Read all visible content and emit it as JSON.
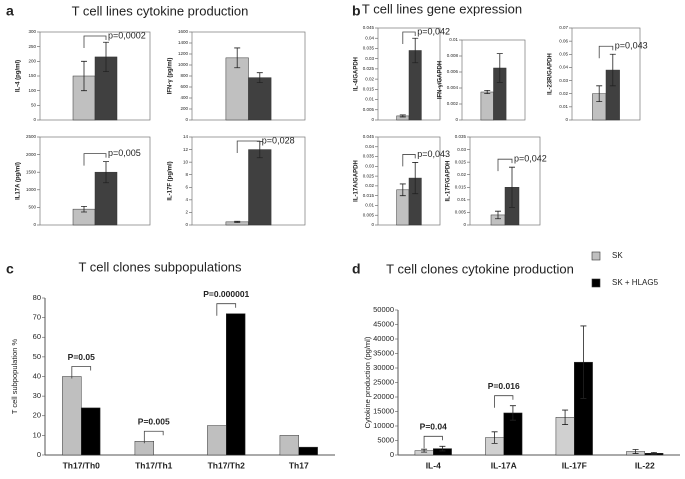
{
  "chart_data": [
    {
      "type": "bar",
      "panel_label": "a",
      "panel_title": "T cell lines cytokine production",
      "ylabel": "IL-4 (pg/ml)",
      "frame": true,
      "series": [
        {
          "color": "#c0c0c0",
          "values": [
            150
          ],
          "errors": [
            50
          ]
        },
        {
          "color": "#404040",
          "values": [
            215
          ],
          "errors": [
            50
          ]
        }
      ],
      "ylim": [
        0,
        300
      ],
      "yticks": [
        0,
        50,
        100,
        150,
        200,
        250,
        300
      ],
      "annotations": [
        {
          "text": "p=0,0002"
        }
      ]
    },
    {
      "type": "bar",
      "ylabel": "IFN-γ (pg/ml)",
      "frame": true,
      "series": [
        {
          "color": "#c0c0c0",
          "values": [
            1130
          ],
          "errors": [
            180
          ]
        },
        {
          "color": "#404040",
          "values": [
            770
          ],
          "errors": [
            90
          ]
        }
      ],
      "ylim": [
        0,
        1600
      ],
      "yticks": [
        0,
        200,
        400,
        600,
        800,
        1000,
        1200,
        1400,
        1600
      ],
      "annotations": []
    },
    {
      "type": "bar",
      "ylabel": "IL17A (pg/ml)",
      "frame": true,
      "series": [
        {
          "color": "#c0c0c0",
          "values": [
            450
          ],
          "errors": [
            80
          ]
        },
        {
          "color": "#404040",
          "values": [
            1500
          ],
          "errors": [
            300
          ]
        }
      ],
      "ylim": [
        0,
        2500
      ],
      "yticks": [
        0,
        500,
        1000,
        1500,
        2000,
        2500
      ],
      "annotations": [
        {
          "text": "p=0,005"
        }
      ]
    },
    {
      "type": "bar",
      "ylabel": "IL-17F (pg/ml)",
      "frame": true,
      "series": [
        {
          "color": "#c0c0c0",
          "values": [
            0.5
          ],
          "errors": [
            0.1
          ]
        },
        {
          "color": "#404040",
          "values": [
            12
          ],
          "errors": [
            1.3
          ]
        }
      ],
      "ylim": [
        0,
        14
      ],
      "yticks": [
        0,
        2,
        4,
        6,
        8,
        10,
        12,
        14
      ],
      "annotations": [
        {
          "text": "p=0,028"
        }
      ]
    },
    {
      "type": "bar",
      "panel_label": "b",
      "panel_title": "T cell lines gene expression",
      "ylabel": "IL-4/GAPDH",
      "frame": true,
      "series": [
        {
          "color": "#c0c0c0",
          "values": [
            0.002
          ],
          "errors": [
            0.0005
          ]
        },
        {
          "color": "#404040",
          "values": [
            0.034
          ],
          "errors": [
            0.006
          ]
        }
      ],
      "ylim": [
        0,
        0.045
      ],
      "yticks": [
        0,
        0.005,
        0.01,
        0.015,
        0.02,
        0.025,
        0.03,
        0.035,
        0.04,
        0.045
      ],
      "annotations": [
        {
          "text": "p=0,042"
        }
      ]
    },
    {
      "type": "bar",
      "ylabel": "IFN-γ/GAPDH",
      "frame": true,
      "series": [
        {
          "color": "#c0c0c0",
          "values": [
            0.0035
          ],
          "errors": [
            0.0002
          ]
        },
        {
          "color": "#404040",
          "values": [
            0.0065
          ],
          "errors": [
            0.0018
          ]
        }
      ],
      "ylim": [
        0,
        0.01
      ],
      "yticks": [
        0,
        0.002,
        0.004,
        0.006,
        0.008,
        0.01
      ],
      "annotations": []
    },
    {
      "type": "bar",
      "ylabel": "IL-23R/GAPDH",
      "frame": true,
      "series": [
        {
          "color": "#c0c0c0",
          "values": [
            0.02
          ],
          "errors": [
            0.006
          ]
        },
        {
          "color": "#404040",
          "values": [
            0.038
          ],
          "errors": [
            0.012
          ]
        }
      ],
      "ylim": [
        0,
        0.07
      ],
      "yticks": [
        0,
        0.01,
        0.02,
        0.03,
        0.04,
        0.05,
        0.06,
        0.07
      ],
      "annotations": [
        {
          "text": "p=0,043"
        }
      ]
    },
    {
      "type": "bar",
      "ylabel": "IL-17A/GAPDH",
      "frame": true,
      "series": [
        {
          "color": "#c0c0c0",
          "values": [
            0.018
          ],
          "errors": [
            0.003
          ]
        },
        {
          "color": "#404040",
          "values": [
            0.024
          ],
          "errors": [
            0.008
          ]
        }
      ],
      "ylim": [
        0,
        0.045
      ],
      "yticks": [
        0,
        0.005,
        0.01,
        0.015,
        0.02,
        0.025,
        0.03,
        0.035,
        0.04,
        0.045
      ],
      "annotations": [
        {
          "text": "p=0,043"
        }
      ]
    },
    {
      "type": "bar",
      "ylabel": "IL-17F/GAPDH",
      "frame": true,
      "series": [
        {
          "color": "#c0c0c0",
          "values": [
            0.004
          ],
          "errors": [
            0.0015
          ]
        },
        {
          "color": "#404040",
          "values": [
            0.015
          ],
          "errors": [
            0.008
          ]
        }
      ],
      "ylim": [
        0,
        0.035
      ],
      "yticks": [
        0,
        0.005,
        0.01,
        0.015,
        0.02,
        0.025,
        0.03,
        0.035
      ],
      "annotations": [
        {
          "text": "p=0,042"
        }
      ]
    },
    {
      "type": "bar",
      "panel_label": "c",
      "panel_title": "T cell clones subpopulations",
      "ylabel": "T cell subpopulation %",
      "categories": [
        "Th17/Th0",
        "Th17/Th1",
        "Th17/Th2",
        "Th17"
      ],
      "series": [
        {
          "color": "#bfbfbf",
          "values": [
            40,
            7,
            15,
            10
          ]
        },
        {
          "color": "#000000",
          "values": [
            24,
            0,
            72,
            4
          ]
        }
      ],
      "ylim": [
        0,
        80
      ],
      "yticks": [
        0,
        10,
        20,
        30,
        40,
        50,
        60,
        70,
        80
      ],
      "annotations": [
        {
          "text": "P=0.05"
        },
        {
          "text": "P=0.005"
        },
        {
          "text": "P=0.000001"
        }
      ]
    },
    {
      "type": "bar",
      "panel_label": "d",
      "panel_title": "T cell clones cytokine production",
      "ylabel": "Cytokine production (pg/ml)",
      "categories": [
        "IL-4",
        "IL-17A",
        "IL-17F",
        "IL-22"
      ],
      "series": [
        {
          "color": "#d0d0d0",
          "values": [
            1500,
            6000,
            13000,
            1200
          ],
          "errors": [
            500,
            2000,
            2500,
            700
          ]
        },
        {
          "color": "#000000",
          "values": [
            2200,
            14500,
            32000,
            600
          ],
          "errors": [
            800,
            2500,
            12500,
            300
          ]
        }
      ],
      "ylim": [
        0,
        50000
      ],
      "yticks": [
        0,
        5000,
        10000,
        15000,
        20000,
        25000,
        30000,
        35000,
        40000,
        45000,
        50000
      ],
      "annotations": [
        {
          "text": "P=0.04"
        },
        {
          "text": "P=0.016"
        }
      ]
    }
  ],
  "legend": [
    {
      "name": "SK",
      "color": "#c0c0c0"
    },
    {
      "name": "SK + HLAG5",
      "color": "#000000"
    }
  ]
}
